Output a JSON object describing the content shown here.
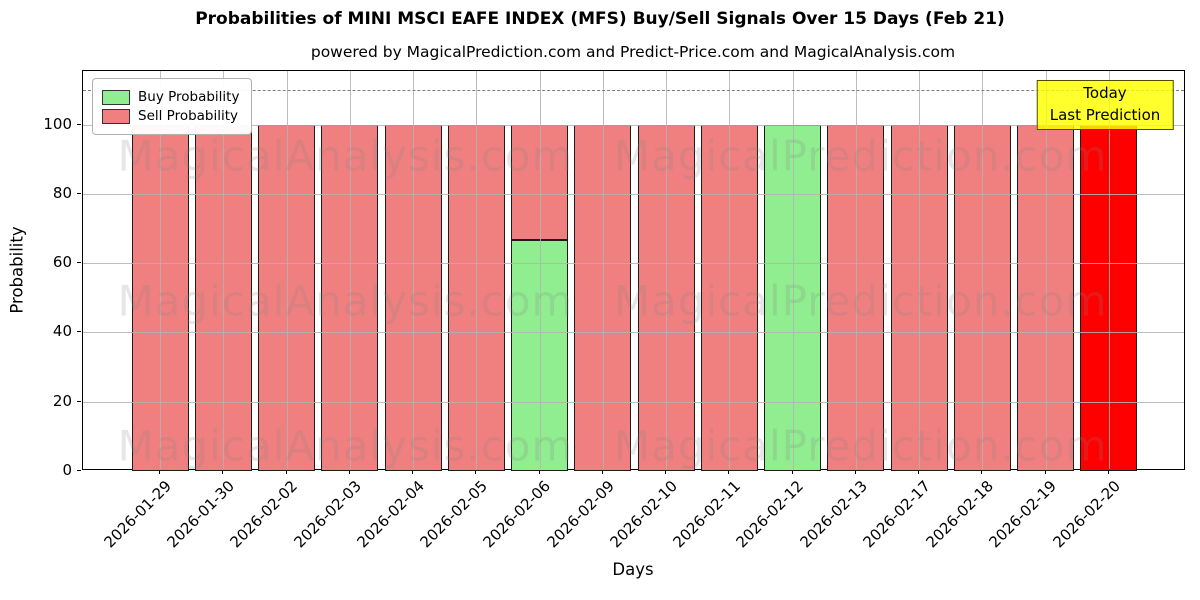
{
  "figure": {
    "title": "Probabilities of MINI MSCI EAFE INDEX (MFS) Buy/Sell Signals Over 15 Days (Feb 21)",
    "subtitle": "powered by MagicalPrediction.com and Predict-Price.com and MagicalAnalysis.com"
  },
  "chart_data": {
    "type": "bar",
    "stacked": true,
    "title": "Probabilities of MINI MSCI EAFE INDEX (MFS) Buy/Sell Signals Over 15 Days (Feb 21)",
    "subtitle": "powered by MagicalPrediction.com and Predict-Price.com and MagicalAnalysis.com",
    "xlabel": "Days",
    "ylabel": "Probability",
    "categories": [
      "2026-01-29",
      "2026-01-30",
      "2026-02-02",
      "2026-02-03",
      "2026-02-04",
      "2026-02-05",
      "2026-02-06",
      "2026-02-09",
      "2026-02-10",
      "2026-02-11",
      "2026-02-12",
      "2026-02-13",
      "2026-02-17",
      "2026-02-18",
      "2026-02-19",
      "2026-02-20"
    ],
    "series": [
      {
        "name": "Buy Probability",
        "color": "#90ee90",
        "values": [
          0,
          0,
          0,
          0,
          0,
          0,
          66.7,
          0,
          0,
          0,
          100,
          0,
          0,
          0,
          0,
          0
        ]
      },
      {
        "name": "Sell Probability",
        "color": "#f08080",
        "values": [
          100,
          100,
          100,
          100,
          100,
          100,
          33.3,
          100,
          100,
          100,
          0,
          100,
          100,
          100,
          100,
          100
        ]
      }
    ],
    "yticks": [
      0,
      20,
      40,
      60,
      80,
      100
    ],
    "ylim": [
      0,
      115.5
    ],
    "grid": true,
    "legend_position": "upper left",
    "bar_edge_color": "#1c1c1c",
    "reference_line": {
      "y": 110,
      "style": "dashed",
      "color": "#7f7f7f"
    },
    "highlight": {
      "index": 15,
      "bar_color": "#ff0000",
      "box_color": "#ffff00",
      "label_lines": [
        "Today",
        "Last Prediction"
      ]
    }
  },
  "watermarks": {
    "texts": [
      "MagicalAnalysis.com",
      "MagicalPrediction.com"
    ]
  }
}
